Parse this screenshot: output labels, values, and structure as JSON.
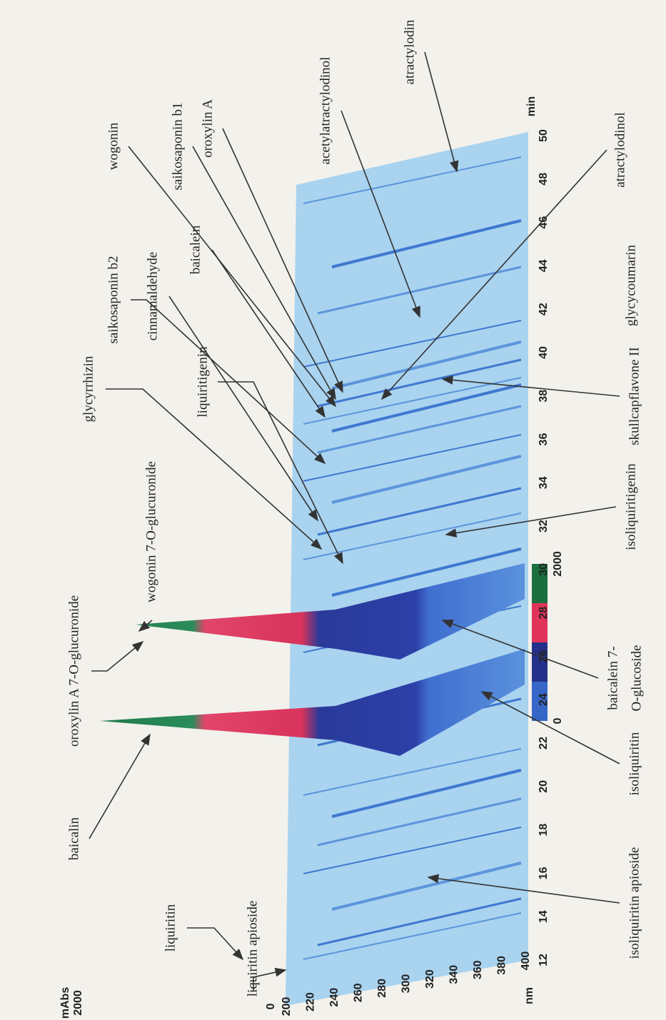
{
  "axis": {
    "y_unit": "mAbs",
    "y_max": "2000",
    "y_zero": "0",
    "wavelength_unit": "nm",
    "wavelength_ticks": [
      "200",
      "220",
      "240",
      "260",
      "280",
      "300",
      "320",
      "340",
      "360",
      "380",
      "400"
    ],
    "time_unit": "min",
    "time_ticks": [
      "12",
      "14",
      "16",
      "18",
      "20",
      "22",
      "24",
      "26",
      "28",
      "30",
      "32",
      "34",
      "36",
      "38",
      "40",
      "42",
      "44",
      "46",
      "48",
      "50"
    ]
  },
  "colorbar": {
    "min": "0",
    "max": "2000"
  },
  "compounds": [
    {
      "label": "liquiritin apioside"
    },
    {
      "label": "liquiritin"
    },
    {
      "label": "baicalin"
    },
    {
      "label": "oroxylin A 7-O-glucuronide"
    },
    {
      "label": "wogonin 7-O-glucuronide"
    },
    {
      "label": "glycyrrhizin"
    },
    {
      "label": "liquiritigenin"
    },
    {
      "label": "cinnamaldehyde"
    },
    {
      "label": "saikosaponin b2"
    },
    {
      "label": "baicalein"
    },
    {
      "label": "wogonin"
    },
    {
      "label": "saikosaponin b1"
    },
    {
      "label": "oroxylin A"
    },
    {
      "label": "acetylatractylodinol"
    },
    {
      "label": "atractylodin"
    },
    {
      "label": "atractylodinol"
    },
    {
      "label": "glycycoumarin"
    },
    {
      "label": "skullcapflavone II"
    },
    {
      "label": "isoliquiritigenin"
    },
    {
      "label": "baicalein 7-",
      "label2": "O-glucoside"
    },
    {
      "label": "isoliquiritin"
    },
    {
      "label": "isoliquiritin apioside"
    }
  ]
}
